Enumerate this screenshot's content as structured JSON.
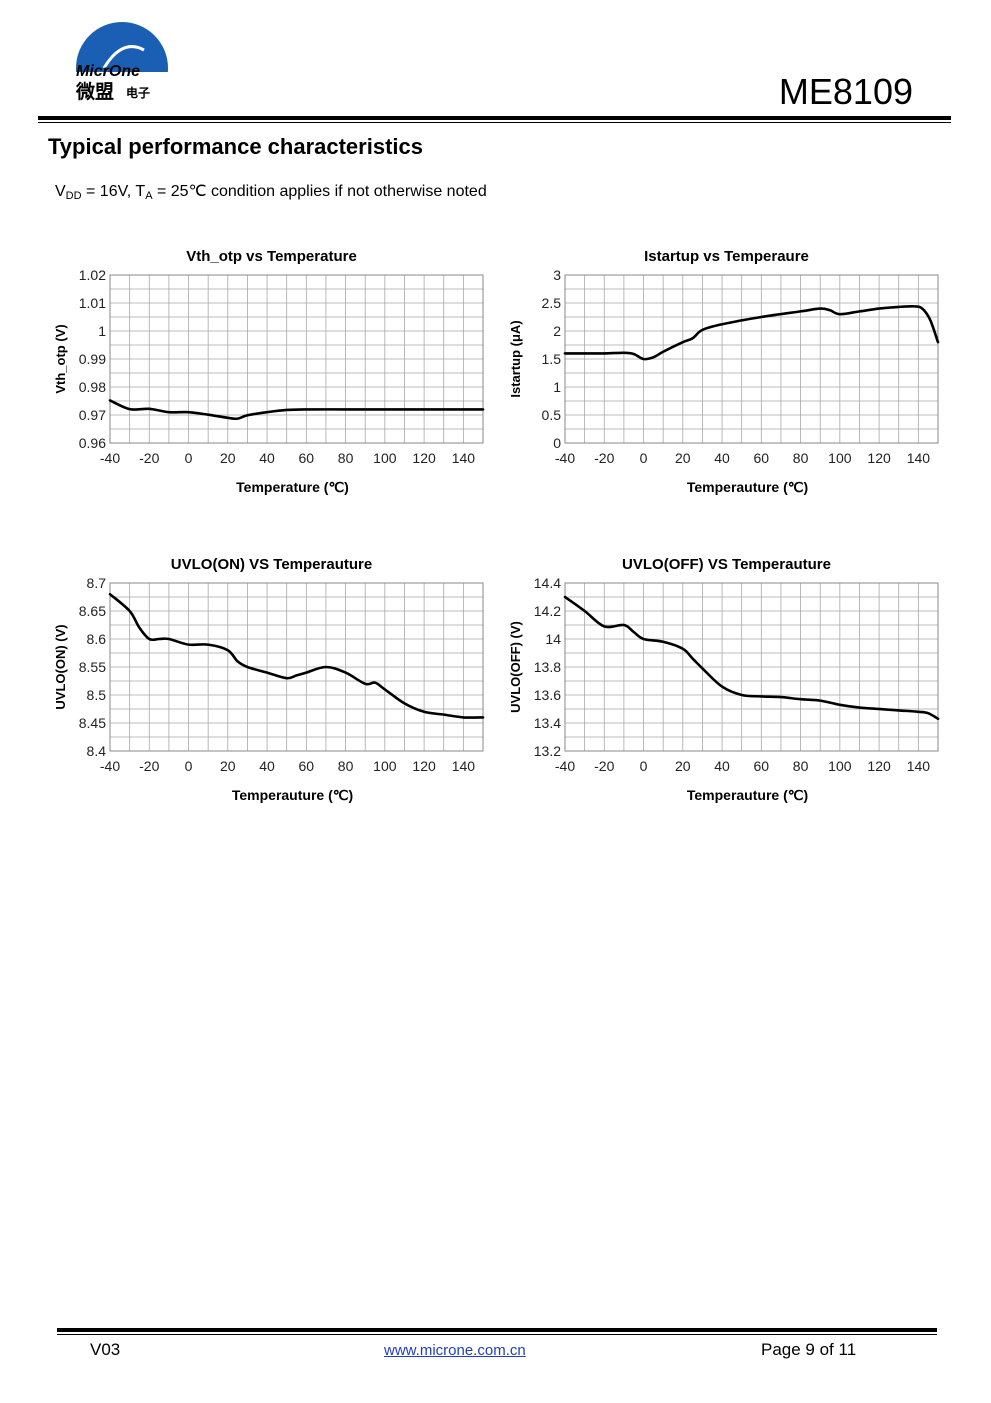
{
  "header": {
    "logo_text_en": "MicrOne",
    "logo_text_cn_big": "微盟",
    "logo_text_cn_small": "电子",
    "part_number": "ME8109"
  },
  "section": {
    "title": "Typical performance characteristics",
    "condition": {
      "v": "V",
      "v_sub": "DD",
      "v_text": " = 16V, ",
      "t": "T",
      "t_sub": "A",
      "t_text": " = 25℃ condition applies if not otherwise noted"
    }
  },
  "colors": {
    "curve": "#000000",
    "grid": "#a8a8a8",
    "link": "#1f3fbf",
    "logo_blue": "#1a5fb4"
  },
  "chart_data": [
    {
      "type": "line",
      "title": "Vth_otp vs Temperature",
      "xlabel": "Temperature (℃)",
      "ylabel": "Vth_otp (V)",
      "xlim": [
        -40,
        150
      ],
      "ylim": [
        0.96,
        1.02
      ],
      "xticks": [
        "-40",
        "-20",
        "0",
        "20",
        "40",
        "60",
        "80",
        "100",
        "120",
        "140"
      ],
      "yticks": [
        "0.96",
        "0.97",
        "0.98",
        "0.99",
        "1",
        "1.01",
        "1.02"
      ],
      "grid": true,
      "x": [
        -40,
        -30,
        -20,
        -10,
        0,
        10,
        20,
        25,
        30,
        40,
        50,
        60,
        80,
        100,
        120,
        140,
        150
      ],
      "y": [
        0.9752,
        0.9721,
        0.9722,
        0.971,
        0.971,
        0.9701,
        0.969,
        0.9687,
        0.9699,
        0.971,
        0.9718,
        0.972,
        0.972,
        0.972,
        0.972,
        0.972,
        0.972
      ]
    },
    {
      "type": "line",
      "title": "Istartup vs Temperaure",
      "xlabel": "Temperauture (℃)",
      "ylabel": "Istartup (μA)",
      "xlim": [
        -40,
        150
      ],
      "ylim": [
        0,
        3
      ],
      "xticks": [
        "-40",
        "-20",
        "0",
        "20",
        "40",
        "60",
        "80",
        "100",
        "120",
        "140"
      ],
      "yticks": [
        "0",
        "0.5",
        "1",
        "1.5",
        "2",
        "2.5",
        "3"
      ],
      "grid": true,
      "x": [
        -40,
        -30,
        -20,
        -10,
        -5,
        0,
        5,
        10,
        20,
        25,
        30,
        40,
        60,
        80,
        90,
        95,
        100,
        110,
        120,
        130,
        138,
        142,
        146,
        150
      ],
      "y": [
        1.6,
        1.6,
        1.6,
        1.61,
        1.59,
        1.5,
        1.53,
        1.63,
        1.8,
        1.87,
        2.02,
        2.12,
        2.25,
        2.35,
        2.4,
        2.37,
        2.3,
        2.35,
        2.4,
        2.43,
        2.44,
        2.4,
        2.2,
        1.8
      ]
    },
    {
      "type": "line",
      "title": "UVLO(ON) VS Temperauture",
      "xlabel": "Temperauture (℃)",
      "ylabel": "UVLO(ON) (V)",
      "xlim": [
        -40,
        150
      ],
      "ylim": [
        8.4,
        8.7
      ],
      "xticks": [
        "-40",
        "-20",
        "0",
        "20",
        "40",
        "60",
        "80",
        "100",
        "120",
        "140"
      ],
      "yticks": [
        "8.4",
        "8.45",
        "8.5",
        "8.55",
        "8.6",
        "8.65",
        "8.7"
      ],
      "grid": true,
      "x": [
        -40,
        -30,
        -25,
        -20,
        -15,
        -10,
        0,
        10,
        20,
        25,
        30,
        40,
        50,
        55,
        60,
        70,
        80,
        90,
        95,
        100,
        110,
        120,
        130,
        140,
        150
      ],
      "y": [
        8.68,
        8.65,
        8.62,
        8.6,
        8.6,
        8.6,
        8.59,
        8.59,
        8.58,
        8.56,
        8.55,
        8.54,
        8.53,
        8.535,
        8.54,
        8.55,
        8.54,
        8.52,
        8.522,
        8.51,
        8.485,
        8.47,
        8.465,
        8.46,
        8.46
      ]
    },
    {
      "type": "line",
      "title": "UVLO(OFF) VS Temperauture",
      "xlabel": "Temperauture (℃)",
      "ylabel": "UVLO(OFF) (V)",
      "xlim": [
        -40,
        150
      ],
      "ylim": [
        13.2,
        14.4
      ],
      "xticks": [
        "-40",
        "-20",
        "0",
        "20",
        "40",
        "60",
        "80",
        "100",
        "120",
        "140"
      ],
      "yticks": [
        "13.2",
        "13.4",
        "13.6",
        "13.8",
        "14",
        "14.2",
        "14.4"
      ],
      "grid": true,
      "x": [
        -40,
        -30,
        -20,
        -10,
        -5,
        0,
        10,
        20,
        25,
        30,
        40,
        50,
        60,
        70,
        80,
        90,
        100,
        110,
        120,
        130,
        140,
        145,
        150
      ],
      "y": [
        14.3,
        14.2,
        14.09,
        14.1,
        14.05,
        14.0,
        13.98,
        13.93,
        13.86,
        13.79,
        13.66,
        13.6,
        13.59,
        13.585,
        13.57,
        13.56,
        13.53,
        13.51,
        13.5,
        13.49,
        13.48,
        13.47,
        13.43
      ]
    }
  ],
  "footer": {
    "version": "V03",
    "url": "www.microne.com.cn",
    "page": "Page 9 of 11"
  }
}
